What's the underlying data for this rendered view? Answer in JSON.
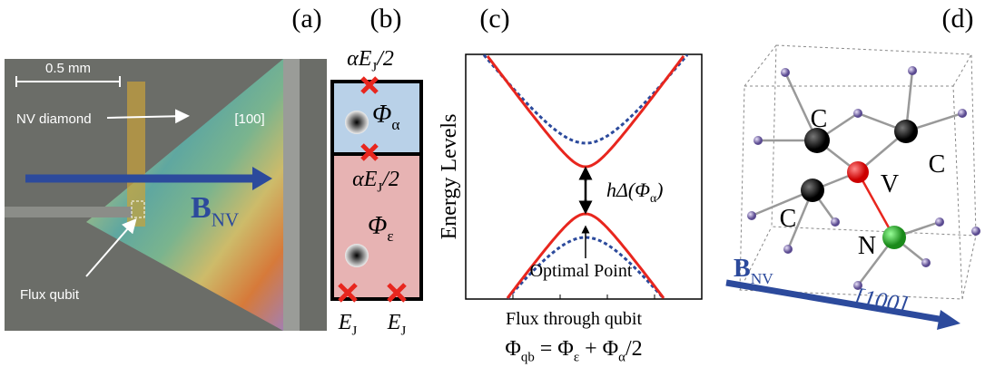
{
  "panels": {
    "a": {
      "label": "(a)",
      "scale_bar": "0.5 mm",
      "nv_diamond": "NV diamond",
      "direction": "[100]",
      "field": [
        "B",
        "NV"
      ],
      "flux_qubit": "Flux qubit"
    },
    "b": {
      "label": "(b)",
      "top_junction": [
        "αE",
        "J",
        "/2"
      ],
      "alpha_flux": [
        "Φ",
        "α"
      ],
      "mid_junction": [
        "αE",
        "J",
        "/2"
      ],
      "eps_flux": [
        "Φ",
        "ε"
      ],
      "left_junction": [
        "E",
        "J"
      ],
      "right_junction": [
        "E",
        "J"
      ]
    },
    "c": {
      "label": "(c)",
      "y_axis": "Energy Levels",
      "gap": [
        "hΔ(Φ",
        "α",
        ")"
      ],
      "optimal_point": "Optimal Point",
      "x_axis": "Flux through qubit",
      "formula": [
        "Φ",
        "qb",
        " = Φ",
        "ε",
        " + Φ",
        "α",
        "/2"
      ]
    },
    "d": {
      "label": "(d)",
      "atom_c1": "C",
      "atom_c2": "C",
      "atom_c3": "C",
      "atom_v": "V",
      "atom_n": "N",
      "field": [
        "B",
        "NV"
      ],
      "direction": "[100]"
    }
  }
}
